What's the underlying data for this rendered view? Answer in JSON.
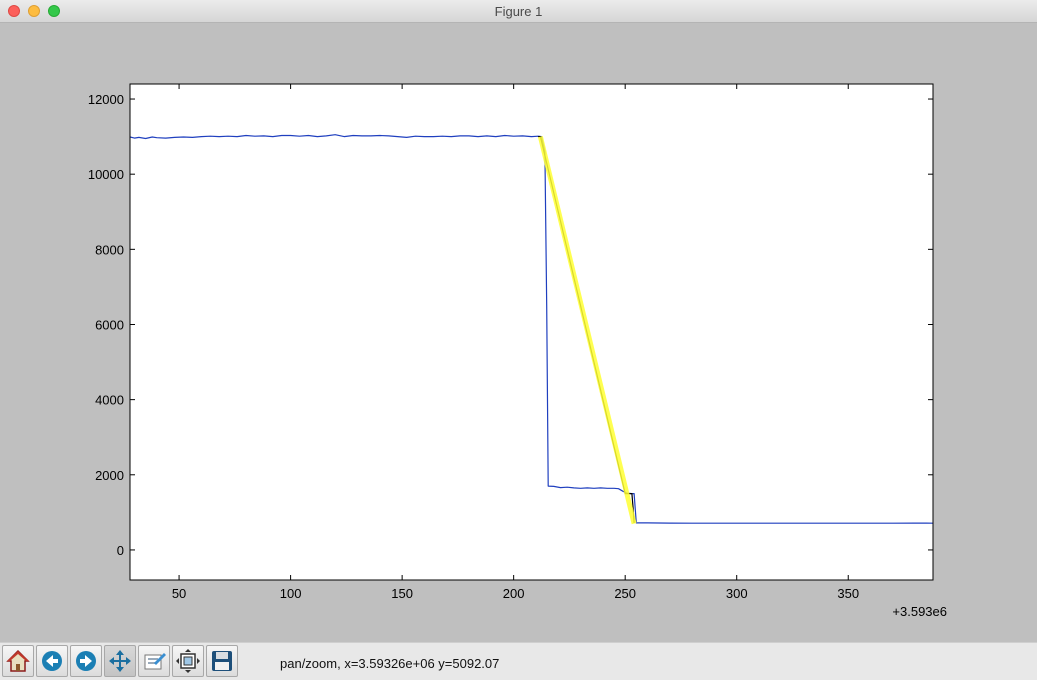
{
  "window": {
    "title": "Figure 1"
  },
  "toolbar": {
    "buttons": [
      {
        "name": "home-button",
        "icon": "home-icon"
      },
      {
        "name": "back-button",
        "icon": "back-arrow-icon"
      },
      {
        "name": "forward-button",
        "icon": "forward-arrow-icon"
      },
      {
        "name": "pan-button",
        "icon": "pan-icon"
      },
      {
        "name": "zoom-button",
        "icon": "zoom-rect-icon"
      },
      {
        "name": "subplots-button",
        "icon": "subplots-config-icon"
      },
      {
        "name": "save-button",
        "icon": "save-icon"
      }
    ],
    "status": "pan/zoom, x=3.59326e+06  y=5092.07"
  },
  "chart_data": {
    "type": "line",
    "title": "",
    "xlabel": "",
    "ylabel": "",
    "x_offset_label": "+3.593e6",
    "xlim": [
      28,
      388
    ],
    "ylim": [
      -800,
      12400
    ],
    "x_ticks": [
      50,
      100,
      150,
      200,
      250,
      300,
      350
    ],
    "y_ticks": [
      0,
      2000,
      4000,
      6000,
      8000,
      10000,
      12000
    ],
    "grid": false,
    "series": [
      {
        "color": "#1f3fbf",
        "x": [
          28,
          30,
          32,
          35,
          38,
          40,
          44,
          48,
          52,
          56,
          60,
          64,
          68,
          72,
          76,
          80,
          84,
          88,
          92,
          96,
          100,
          104,
          108,
          112,
          116,
          120,
          124,
          128,
          132,
          136,
          140,
          144,
          148,
          152,
          156,
          160,
          164,
          168,
          172,
          176,
          180,
          184,
          188,
          192,
          196,
          200,
          204,
          208,
          211,
          212.5,
          214,
          214.8,
          215.5,
          218,
          221,
          224,
          227,
          230,
          233,
          236,
          239,
          242,
          245,
          247,
          249,
          251,
          253,
          254,
          255,
          260,
          270,
          280,
          290,
          300,
          310,
          320,
          330,
          340,
          350,
          360,
          370,
          380,
          385,
          388
        ],
        "y": [
          10990,
          10960,
          10980,
          10950,
          10990,
          10970,
          10960,
          10980,
          10990,
          10980,
          11000,
          11010,
          11000,
          11010,
          11000,
          11030,
          11010,
          11020,
          11000,
          11030,
          11030,
          11010,
          11030,
          11000,
          11020,
          11050,
          11000,
          11030,
          11020,
          11020,
          11030,
          11020,
          11000,
          10980,
          11010,
          11000,
          11000,
          11010,
          11000,
          11020,
          11020,
          11000,
          11020,
          11000,
          11030,
          11010,
          11020,
          11000,
          11010,
          11000,
          10600,
          6500,
          1700,
          1690,
          1660,
          1670,
          1650,
          1640,
          1650,
          1640,
          1650,
          1640,
          1640,
          1630,
          1560,
          1510,
          1500,
          1500,
          720,
          720,
          715,
          712,
          712,
          712,
          712,
          712,
          712,
          712,
          712,
          712,
          712,
          715,
          715,
          712
        ]
      },
      {
        "color": "#000000",
        "x": [
          211,
          212,
          250,
          253,
          253.5,
          254
        ],
        "y": [
          11000,
          11000,
          1500,
          1500,
          1150,
          720
        ]
      },
      {
        "color": "#ffff33",
        "x": [
          212,
          254
        ],
        "y": [
          11000,
          700
        ]
      }
    ]
  }
}
